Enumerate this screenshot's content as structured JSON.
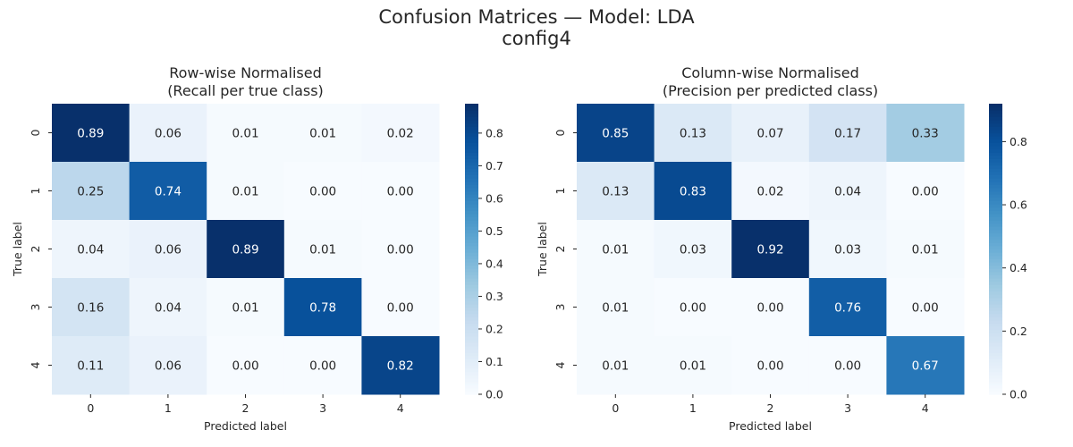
{
  "suptitle": [
    "Confusion Matrices — Model: LDA",
    "config4"
  ],
  "colormap": {
    "name": "Blues",
    "stops": [
      "#f7fbff",
      "#deebf7",
      "#c6dbef",
      "#9ecae1",
      "#6baed6",
      "#4292c6",
      "#2171b5",
      "#08519c",
      "#08306b"
    ]
  },
  "chart_data": [
    {
      "type": "heatmap",
      "title": [
        "Row-wise Normalised",
        "(Recall per true class)"
      ],
      "xlabel": "Predicted label",
      "ylabel": "True label",
      "x_categories": [
        "0",
        "1",
        "2",
        "3",
        "4"
      ],
      "y_categories": [
        "0",
        "1",
        "2",
        "3",
        "4"
      ],
      "values": [
        [
          0.89,
          0.06,
          0.01,
          0.01,
          0.02
        ],
        [
          0.25,
          0.74,
          0.01,
          0.0,
          0.0
        ],
        [
          0.04,
          0.06,
          0.89,
          0.01,
          0.0
        ],
        [
          0.16,
          0.04,
          0.01,
          0.78,
          0.0
        ],
        [
          0.11,
          0.06,
          0.0,
          0.0,
          0.82
        ]
      ],
      "colorbar": {
        "range": [
          0,
          0.89
        ],
        "ticks": [
          0.0,
          0.1,
          0.2,
          0.3,
          0.4,
          0.5,
          0.6,
          0.7,
          0.8
        ],
        "tick_labels": [
          "0.0",
          "0.1",
          "0.2",
          "0.3",
          "0.4",
          "0.5",
          "0.6",
          "0.7",
          "0.8"
        ]
      }
    },
    {
      "type": "heatmap",
      "title": [
        "Column-wise Normalised",
        "(Precision per predicted class)"
      ],
      "xlabel": "Predicted label",
      "ylabel": "True label",
      "x_categories": [
        "0",
        "1",
        "2",
        "3",
        "4"
      ],
      "y_categories": [
        "0",
        "1",
        "2",
        "3",
        "4"
      ],
      "values": [
        [
          0.85,
          0.13,
          0.07,
          0.17,
          0.33
        ],
        [
          0.13,
          0.83,
          0.02,
          0.04,
          0.0
        ],
        [
          0.01,
          0.03,
          0.92,
          0.03,
          0.01
        ],
        [
          0.01,
          0.0,
          0.0,
          0.76,
          0.0
        ],
        [
          0.01,
          0.01,
          0.0,
          0.0,
          0.67
        ]
      ],
      "colorbar": {
        "range": [
          0,
          0.92
        ],
        "ticks": [
          0.0,
          0.2,
          0.4,
          0.6,
          0.8
        ],
        "tick_labels": [
          "0.0",
          "0.2",
          "0.4",
          "0.6",
          "0.8"
        ]
      }
    }
  ]
}
